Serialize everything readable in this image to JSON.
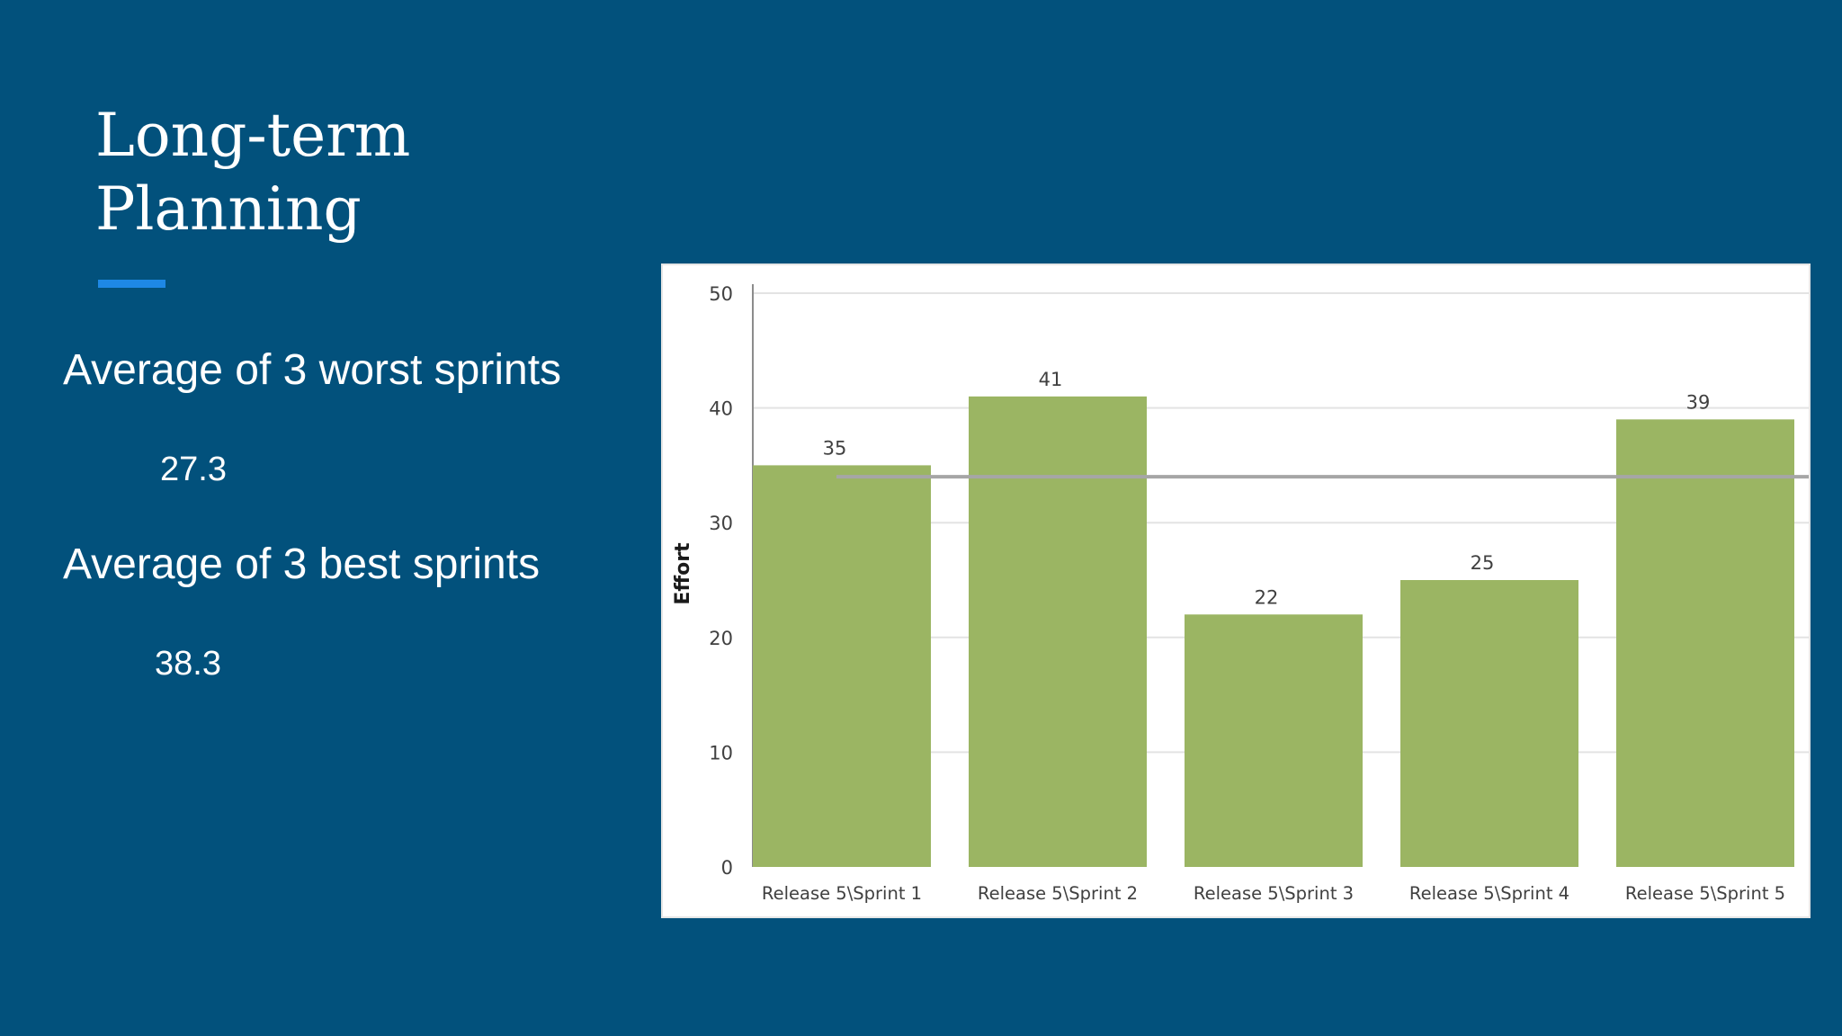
{
  "slide": {
    "title_lines": [
      "Long-term",
      "Planning"
    ],
    "accent_color": "#1E88E5",
    "background_color": "#02517C",
    "bullets": [
      {
        "heading": "Average of 3 worst sprints",
        "value": "27.3"
      },
      {
        "heading": "Average of 3 best sprints",
        "value": "38.3"
      }
    ]
  },
  "chart_data": {
    "type": "bar",
    "categories": [
      "Release 5\\Sprint 1",
      "Release 5\\Sprint 2",
      "Release 5\\Sprint 3",
      "Release 5\\Sprint 4",
      "Release 5\\Sprint 5"
    ],
    "values": [
      35,
      41,
      22,
      25,
      39
    ],
    "data_labels": [
      "35",
      "41",
      "22",
      "25",
      "39"
    ],
    "title": "",
    "xlabel": "",
    "ylabel": "Effort",
    "ylim": [
      0,
      50
    ],
    "yticks": [
      0,
      10,
      20,
      30,
      40,
      50
    ],
    "reference_line": 34,
    "bar_color": "#9BB563",
    "reference_line_color": "#A6A6A6",
    "grid": true,
    "legend": "none"
  }
}
